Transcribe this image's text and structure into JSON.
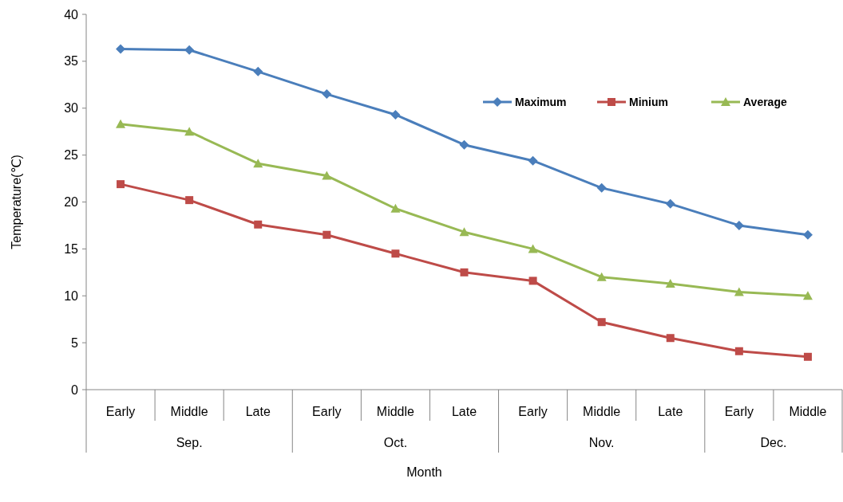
{
  "chart_data": {
    "type": "line",
    "xlabel": "Month",
    "ylabel": "Temperature(℃)",
    "categories": [
      "Early",
      "Middle",
      "Late",
      "Early",
      "Middle",
      "Late",
      "Early",
      "Middle",
      "Late",
      "Early",
      "Middle"
    ],
    "annotations": [
      "Sep.",
      "Oct.",
      "Nov.",
      "Dec."
    ],
    "ylim": [
      0,
      40
    ],
    "yticks": [
      0,
      5,
      10,
      15,
      20,
      25,
      30,
      35,
      40
    ],
    "grid": false,
    "legend": "top right",
    "series": [
      {
        "name": "Maximum",
        "color": "#4a7ebb",
        "marker": "diamond",
        "values": [
          36.3,
          36.2,
          33.9,
          31.5,
          29.3,
          26.1,
          24.4,
          21.5,
          19.8,
          17.5,
          16.5
        ]
      },
      {
        "name": "Minium",
        "color": "#be4b48",
        "marker": "square",
        "values": [
          21.9,
          20.2,
          17.6,
          16.5,
          14.5,
          12.5,
          11.6,
          7.2,
          5.5,
          4.1,
          3.5
        ]
      },
      {
        "name": "Average",
        "color": "#98b954",
        "marker": "triangle",
        "values": [
          28.3,
          27.5,
          24.1,
          22.8,
          19.3,
          16.8,
          15.0,
          12.0,
          11.3,
          10.4,
          10.0
        ]
      }
    ]
  }
}
